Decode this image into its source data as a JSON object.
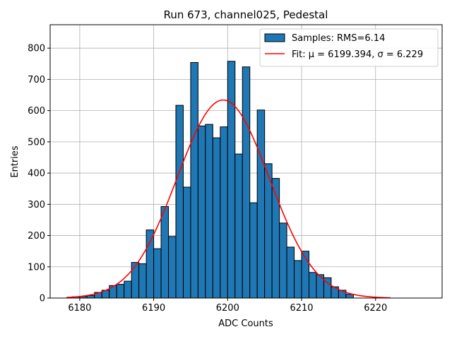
{
  "chart_data": {
    "type": "bar",
    "title": "Run 673, channel025, Pedestal",
    "xlabel": "ADC Counts",
    "ylabel": "Entries",
    "xlim": [
      6176.0,
      6229.0
    ],
    "ylim": [
      0,
      875
    ],
    "xticks": [
      6180,
      6190,
      6200,
      6210,
      6220
    ],
    "yticks": [
      0,
      100,
      200,
      300,
      400,
      500,
      600,
      700,
      800
    ],
    "grid": true,
    "legend_position": "top-right",
    "colors": {
      "bars": "#1f77b4",
      "bar_edge": "#000000",
      "fit": "#ff0000",
      "grid": "#b0b0b0"
    },
    "series": [
      {
        "name": "Samples: RMS=6.14",
        "type": "histogram",
        "bin_edges": [
          6179.0,
          6180.0,
          6181.0,
          6182.0,
          6183.0,
          6184.0,
          6185.0,
          6186.0,
          6187.0,
          6188.0,
          6189.0,
          6190.0,
          6191.0,
          6192.0,
          6193.0,
          6194.0,
          6195.0,
          6196.0,
          6197.0,
          6198.0,
          6199.0,
          6200.0,
          6201.0,
          6202.0,
          6203.0,
          6204.0,
          6205.0,
          6206.0,
          6207.0,
          6208.0,
          6209.0,
          6210.0,
          6211.0,
          6212.0,
          6213.0,
          6214.0,
          6215.0,
          6216.0,
          6217.0
        ],
        "counts": [
          4,
          5,
          8,
          18,
          25,
          40,
          44,
          54,
          114,
          110,
          218,
          158,
          293,
          197,
          617,
          355,
          754,
          551,
          556,
          513,
          548,
          758,
          461,
          740,
          305,
          602,
          430,
          383,
          240,
          163,
          120,
          150,
          82,
          75,
          65,
          36,
          25,
          12,
          13
        ]
      },
      {
        "name": "Fit: μ = 6199.394, σ = 6.229",
        "type": "gaussian",
        "amplitude": 634,
        "mu": 6199.394,
        "sigma": 6.229,
        "x_range": [
          6178.2,
          6222.0
        ]
      }
    ]
  }
}
